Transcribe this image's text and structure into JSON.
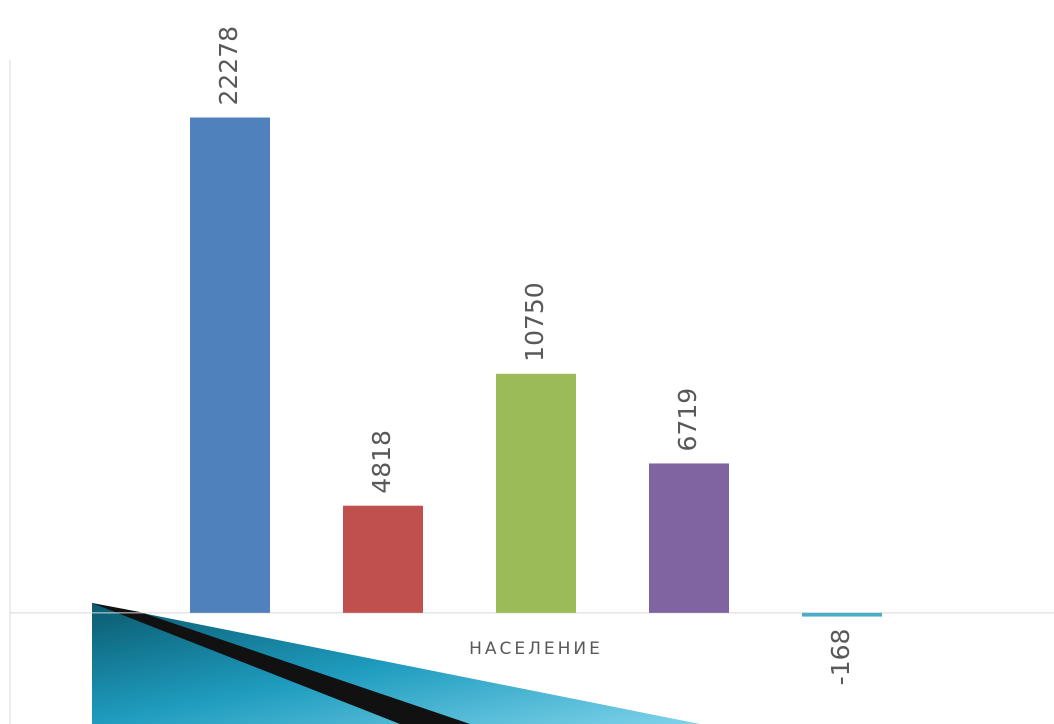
{
  "chart_data": {
    "type": "bar",
    "categories": [
      "НАСЕЛЕНИЕ"
    ],
    "series": [
      {
        "color": "#4f81bd",
        "values": [
          22278
        ]
      },
      {
        "color": "#c0504d",
        "values": [
          4818
        ]
      },
      {
        "color": "#9bbb59",
        "values": [
          10750
        ]
      },
      {
        "color": "#8064a2",
        "values": [
          6719
        ]
      },
      {
        "color": "#4bacc6",
        "values": [
          -168
        ]
      }
    ],
    "ylim": [
      -5000,
      25000
    ]
  }
}
